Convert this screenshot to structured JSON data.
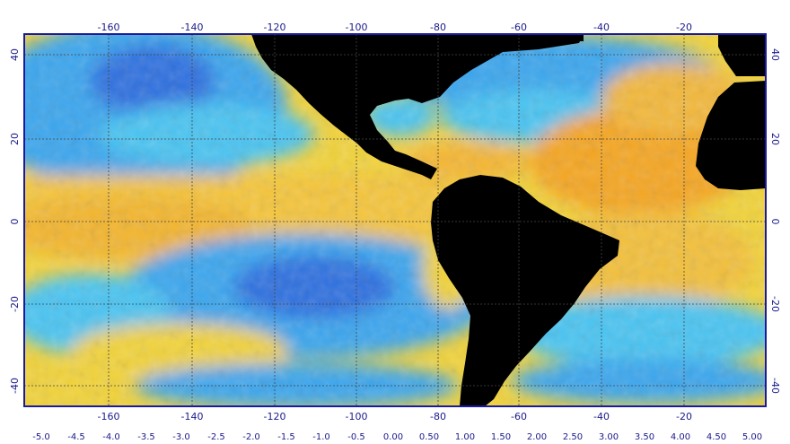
{
  "map": {
    "lon_ticks": [
      "-160",
      "-140",
      "-120",
      "-100",
      "-80",
      "-60",
      "-40",
      "-20"
    ],
    "lat_ticks": [
      "40",
      "20",
      "0",
      "-20",
      "-40"
    ],
    "colorbar_ticks": [
      "-5.0",
      "-4.5",
      "-4.0",
      "-3.5",
      "-3.0",
      "-2.5",
      "-2.0",
      "-1.5",
      "-1.0",
      "-0.5",
      "0.00",
      "0.50",
      "1.00",
      "1.50",
      "2.00",
      "2.50",
      "3.00",
      "3.50",
      "4.00",
      "4.50",
      "5.00"
    ],
    "colors": {
      "frame": "#1a1aa0",
      "land": "#000000",
      "ocean_warm": "#f5a623",
      "ocean_neutral": "#f2e64a",
      "ocean_cool": "#35b8f0",
      "ocean_cold": "#2f6fe0",
      "grid": "#333333"
    }
  }
}
